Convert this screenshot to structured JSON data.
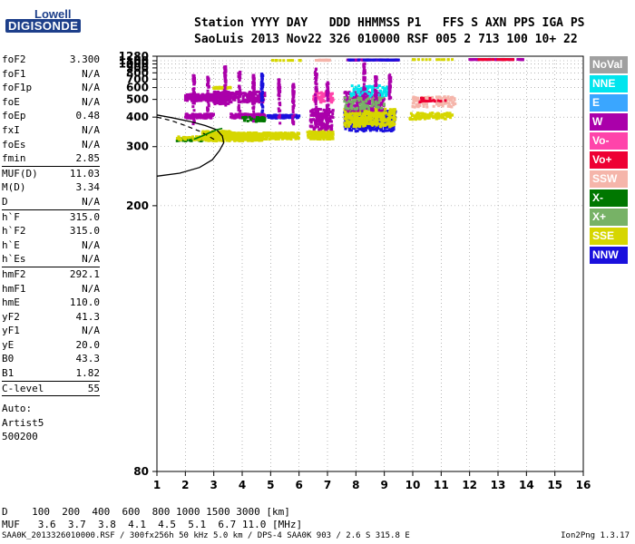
{
  "logo": {
    "line1": "Lowell",
    "line2": "DIGISONDE"
  },
  "header": {
    "line1": "Station YYYY DAY   DDD HHMMSS P1   FFS S AXN PPS IGA PS",
    "line2": "SaoLuis 2013 Nov22 326 010000 RSF 005 2 713 100 10+ 22"
  },
  "params": [
    {
      "label": "foF2",
      "value": "3.300"
    },
    {
      "label": "foF1",
      "value": "N/A"
    },
    {
      "label": "foF1p",
      "value": "N/A"
    },
    {
      "label": "foE",
      "value": "N/A"
    },
    {
      "label": "foEp",
      "value": "0.48"
    },
    {
      "label": "fxI",
      "value": "N/A"
    },
    {
      "label": "foEs",
      "value": "N/A"
    },
    {
      "label": "fmin",
      "value": "2.85",
      "divider": true
    },
    {
      "label": "MUF(D)",
      "value": "11.03"
    },
    {
      "label": "M(D)",
      "value": "3.34"
    },
    {
      "label": "D",
      "value": "N/A",
      "divider": true
    },
    {
      "label": "h`F",
      "value": "315.0"
    },
    {
      "label": "h`F2",
      "value": "315.0"
    },
    {
      "label": "h`E",
      "value": "N/A"
    },
    {
      "label": "h`Es",
      "value": "N/A",
      "divider": true
    },
    {
      "label": "hmF2",
      "value": "292.1"
    },
    {
      "label": "hmF1",
      "value": "N/A"
    },
    {
      "label": "hmE",
      "value": "110.0"
    },
    {
      "label": "yF2",
      "value": "41.3"
    },
    {
      "label": "yF1",
      "value": "N/A"
    },
    {
      "label": "yE",
      "value": "20.0"
    },
    {
      "label": "B0",
      "value": "43.3"
    },
    {
      "label": "B1",
      "value": "1.82",
      "divider": true
    },
    {
      "label": "C-level",
      "value": "55",
      "divider": true
    }
  ],
  "auto": {
    "line1": "Auto:",
    "line2": "Artist5",
    "line3": "500200"
  },
  "legend": [
    {
      "label": "NoVal",
      "color": "#a0a0a0"
    },
    {
      "label": "NNE",
      "color": "#00e5ee"
    },
    {
      "label": "E",
      "color": "#3aa6ff"
    },
    {
      "label": "W",
      "color": "#aa00aa"
    },
    {
      "label": "Vo-",
      "color": "#ff44aa"
    },
    {
      "label": "Vo+",
      "color": "#ee0033"
    },
    {
      "label": "SSW",
      "color": "#f5b5aa"
    },
    {
      "label": "X-",
      "color": "#007700"
    },
    {
      "label": "X+",
      "color": "#77b266"
    },
    {
      "label": "SSE",
      "color": "#d6d600"
    },
    {
      "label": "NNW",
      "color": "#1a10dd"
    }
  ],
  "dmuf": {
    "d_line": "D    100  200  400  600  800 1000 1500 3000 [km]",
    "muf_line": "MUF   3.6  3.7  3.8  4.1  4.5  5.1  6.7 11.0 [MHz]"
  },
  "footer": {
    "text": "SAA0K_2013326010000.RSF / 300fx256h 50 kHz 5.0 km / DPS-4 SAA0K 903 / 2.6 S 315.8 E",
    "version": "Ion2Png 1.3.17"
  },
  "chart_data": {
    "type": "scatter",
    "xlim": [
      1,
      16
    ],
    "ylim": [
      80,
      1280
    ],
    "x_ticks": [
      1,
      2,
      3,
      4,
      5,
      6,
      7,
      8,
      9,
      10,
      11,
      12,
      13,
      14,
      15,
      16
    ],
    "y_ticks": [
      80,
      200,
      300,
      400,
      500,
      600,
      700,
      800,
      900,
      1000,
      1100,
      1280
    ],
    "y_scale": "reciprocal",
    "grid": true,
    "legend_position": "right",
    "clusters": [
      {
        "x": [
          1.7,
          2.6
        ],
        "y": [
          315,
          325
        ],
        "color": "#007700",
        "count": 40
      },
      {
        "x": [
          1.7,
          2.6
        ],
        "y": [
          318,
          328
        ],
        "color": "#d6d600",
        "count": 40
      },
      {
        "x": [
          2.0,
          3.0
        ],
        "y": [
          395,
          415
        ],
        "color": "#aa00aa",
        "count": 120
      },
      {
        "x": [
          2.0,
          3.0
        ],
        "y": [
          490,
          540
        ],
        "color": "#aa00aa",
        "count": 200
      },
      {
        "x": [
          2.6,
          3.6
        ],
        "y": [
          315,
          345
        ],
        "color": "#d6d600",
        "count": 200
      },
      {
        "x": [
          3.0,
          3.6
        ],
        "y": [
          470,
          560
        ],
        "color": "#aa00aa",
        "count": 200
      },
      {
        "x": [
          3.0,
          3.6
        ],
        "y": [
          590,
          605
        ],
        "color": "#d6d600",
        "count": 60
      },
      {
        "x": [
          3.5,
          4.8
        ],
        "y": [
          315,
          340
        ],
        "color": "#d6d600",
        "count": 260
      },
      {
        "x": [
          3.6,
          4.8
        ],
        "y": [
          395,
          415
        ],
        "color": "#aa00aa",
        "count": 150
      },
      {
        "x": [
          3.6,
          4.8
        ],
        "y": [
          480,
          560
        ],
        "color": "#aa00aa",
        "count": 120
      },
      {
        "x": [
          4.0,
          4.8
        ],
        "y": [
          380,
          400
        ],
        "color": "#007700",
        "count": 40
      },
      {
        "x": [
          4.8,
          6.0
        ],
        "y": [
          320,
          340
        ],
        "color": "#d6d600",
        "count": 150
      },
      {
        "x": [
          4.9,
          6.0
        ],
        "y": [
          395,
          410
        ],
        "color": "#1a10dd",
        "count": 80
      },
      {
        "x": [
          6.3,
          7.2
        ],
        "y": [
          320,
          345
        ],
        "color": "#d6d600",
        "count": 160
      },
      {
        "x": [
          6.4,
          7.2
        ],
        "y": [
          350,
          440
        ],
        "color": "#aa00aa",
        "count": 160
      },
      {
        "x": [
          6.5,
          7.2
        ],
        "y": [
          480,
          560
        ],
        "color": "#ff44aa",
        "count": 80
      },
      {
        "x": [
          7.6,
          9.4
        ],
        "y": [
          345,
          430
        ],
        "color": "#1a10dd",
        "count": 400
      },
      {
        "x": [
          7.6,
          9.4
        ],
        "y": [
          360,
          440
        ],
        "color": "#d6d600",
        "count": 350
      },
      {
        "x": [
          7.6,
          9.0
        ],
        "y": [
          430,
          560
        ],
        "color": "#aa00aa",
        "count": 200
      },
      {
        "x": [
          7.6,
          9.0
        ],
        "y": [
          440,
          520
        ],
        "color": "#77b266",
        "count": 80
      },
      {
        "x": [
          7.8,
          9.2
        ],
        "y": [
          520,
          620
        ],
        "color": "#00e5ee",
        "count": 80
      },
      {
        "x": [
          7.7,
          9.5
        ],
        "y": [
          1120,
          1135
        ],
        "color": "#aa00aa",
        "count": 100
      },
      {
        "x": [
          7.7,
          9.5
        ],
        "y": [
          1122,
          1132
        ],
        "color": "#1a10dd",
        "count": 40
      },
      {
        "x": [
          9.9,
          11.4
        ],
        "y": [
          390,
          420
        ],
        "color": "#d6d600",
        "count": 100
      },
      {
        "x": [
          10.0,
          11.5
        ],
        "y": [
          450,
          520
        ],
        "color": "#f5b5aa",
        "count": 100
      },
      {
        "x": [
          10.2,
          11.2
        ],
        "y": [
          480,
          510
        ],
        "color": "#ee0033",
        "count": 20
      },
      {
        "x": [
          6.6,
          7.1
        ],
        "y": [
          1110,
          1125
        ],
        "color": "#f5b5aa",
        "count": 30
      },
      {
        "x": [
          5.0,
          6.2
        ],
        "y": [
          1105,
          1115
        ],
        "color": "#d6d600",
        "count": 14
      },
      {
        "x": [
          10.0,
          11.5
        ],
        "y": [
          1135,
          1145
        ],
        "color": "#d6d600",
        "count": 14
      },
      {
        "x": [
          12.0,
          13.9
        ],
        "y": [
          1140,
          1150
        ],
        "color": "#aa00aa",
        "count": 60
      },
      {
        "x": [
          12.3,
          13.7
        ],
        "y": [
          1141,
          1149
        ],
        "color": "#ee0033",
        "count": 30
      }
    ],
    "vertical_streaks": [
      {
        "x": 2.3,
        "y": [
          350,
          760
        ],
        "color": "#aa00aa"
      },
      {
        "x": 2.8,
        "y": [
          400,
          740
        ],
        "color": "#aa00aa"
      },
      {
        "x": 3.4,
        "y": [
          450,
          930
        ],
        "color": "#aa00aa"
      },
      {
        "x": 3.9,
        "y": [
          400,
          820
        ],
        "color": "#aa00aa"
      },
      {
        "x": 4.4,
        "y": [
          380,
          760
        ],
        "color": "#aa00aa"
      },
      {
        "x": 4.7,
        "y": [
          400,
          780
        ],
        "color": "#1a10dd"
      },
      {
        "x": 5.3,
        "y": [
          360,
          700
        ],
        "color": "#aa00aa"
      },
      {
        "x": 5.8,
        "y": [
          370,
          640
        ],
        "color": "#aa00aa"
      },
      {
        "x": 6.6,
        "y": [
          370,
          900
        ],
        "color": "#aa00aa"
      },
      {
        "x": 7.0,
        "y": [
          370,
          660
        ],
        "color": "#aa00aa"
      },
      {
        "x": 8.3,
        "y": [
          500,
          1010
        ],
        "color": "#aa00aa"
      },
      {
        "x": 8.7,
        "y": [
          500,
          740
        ],
        "color": "#aa00aa"
      },
      {
        "x": 9.2,
        "y": [
          500,
          790
        ],
        "color": "#aa00aa"
      }
    ],
    "profile_curve": {
      "x": [
        1.0,
        1.8,
        2.5,
        2.95,
        3.2,
        3.35,
        3.3,
        3.1,
        2.7,
        2.2,
        1.5,
        1.0
      ],
      "y": [
        240,
        245,
        255,
        270,
        290,
        310,
        330,
        350,
        365,
        380,
        398,
        410
      ]
    },
    "dashed_curve": {
      "x": [
        1.0,
        1.5,
        2.0,
        2.5,
        2.8,
        3.0,
        3.1
      ],
      "y": [
        400,
        385,
        365,
        345,
        330,
        320,
        315
      ]
    },
    "green_curve": {
      "x": [
        2.3,
        2.6,
        2.85,
        3.1,
        3.3
      ],
      "y": [
        320,
        330,
        340,
        350,
        355
      ]
    }
  }
}
